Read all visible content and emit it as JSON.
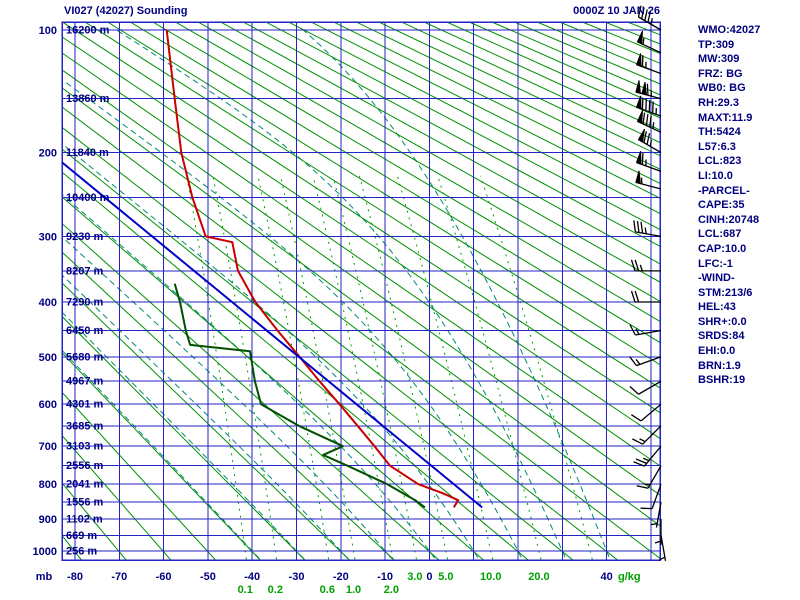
{
  "header": {
    "title": "VI027 (42027) Sounding",
    "datetime": "0000Z 10 JAN 26"
  },
  "colors": {
    "text_navy": "#000080",
    "grid_blue": "#2323c8",
    "dry_adiabat_green": "#009000",
    "moist_adiabat_teal": "#008878",
    "mixing_green": "#00a000",
    "temperature_red": "#c80000",
    "dewpoint_green": "#005000",
    "parcel_blue": "#0000c8",
    "barb_black": "#000000"
  },
  "stats_panel": {
    "lines": [
      "WMO:42027",
      "TP:309",
      "MW:309",
      "FRZ: BG",
      "WB0: BG",
      "RH:29.3",
      "MAXT:11.9",
      "TH:5424",
      "L57:6.3",
      "LCL:823",
      "LI:10.0",
      "-PARCEL-",
      "CAPE:35",
      "CINH:20748",
      "LCL:687",
      "CAP:10.0",
      "LFC:-1",
      "-WIND-",
      "STM:213/6",
      "HEL:43",
      "SHR+:0.0",
      "SRDS:84",
      "EHI:0.0",
      "BRN:1.9",
      "BSHR:19"
    ]
  },
  "chart_data": {
    "type": "line",
    "diagram": "stuve-sounding",
    "title": "VI027 (42027) Sounding",
    "pressure_axis": {
      "unit": "mb",
      "major_labels": [
        100,
        200,
        300,
        400,
        500,
        600,
        700,
        800,
        900,
        1000
      ],
      "grid_min": 100,
      "grid_max": 1000,
      "grid_step": 50
    },
    "temp_axis": {
      "unit": "C",
      "grid_min": -80,
      "grid_max": 50,
      "grid_step": 10,
      "tick_labels": [
        {
          "t": -80,
          "label": "-80"
        },
        {
          "t": -70,
          "label": "-70"
        },
        {
          "t": -60,
          "label": "-60"
        },
        {
          "t": -50,
          "label": "-50"
        },
        {
          "t": -40,
          "label": "-40"
        },
        {
          "t": -30,
          "label": "-30"
        },
        {
          "t": -20,
          "label": "-20"
        },
        {
          "t": -10,
          "label": "-10"
        },
        {
          "t": 0,
          "label": "0"
        },
        {
          "t": 40,
          "label": "40"
        }
      ]
    },
    "height_labels": [
      {
        "p": 100,
        "label": "16200 m"
      },
      {
        "p": 150,
        "label": "13860 m"
      },
      {
        "p": 200,
        "label": "11840 m"
      },
      {
        "p": 250,
        "label": "10400 m"
      },
      {
        "p": 300,
        "label": "9230 m"
      },
      {
        "p": 350,
        "label": "8207 m"
      },
      {
        "p": 400,
        "label": "7290 m"
      },
      {
        "p": 450,
        "label": "6450 m"
      },
      {
        "p": 500,
        "label": "5680 m"
      },
      {
        "p": 550,
        "label": "4967 m"
      },
      {
        "p": 600,
        "label": "4301 m"
      },
      {
        "p": 650,
        "label": "3685 m"
      },
      {
        "p": 700,
        "label": "3103 m"
      },
      {
        "p": 750,
        "label": "2556 m"
      },
      {
        "p": 800,
        "label": "2041 m"
      },
      {
        "p": 850,
        "label": "1556 m"
      },
      {
        "p": 900,
        "label": "1102 m"
      },
      {
        "p": 950,
        "label": "669 m"
      },
      {
        "p": 1000,
        "label": "256 m"
      }
    ],
    "mixing_ratio": {
      "unit": "g/kg",
      "lines_g_kg": [
        0.1,
        0.2,
        0.6,
        1.0,
        2.0,
        3.0,
        5.0,
        10.0,
        20.0,
        40.0
      ],
      "row1_values": [
        3.0,
        5.0,
        10.0,
        20.0
      ],
      "row1_labels": [
        "3.0",
        "5.0",
        "10.0",
        "20.0"
      ],
      "row2_values": [
        0.1,
        0.2,
        0.6,
        1.0,
        2.0
      ],
      "row2_labels": [
        "0.1",
        "0.2",
        "0.6",
        "1.0",
        "2.0"
      ]
    },
    "dry_adiabats": {
      "theta_k_min": 193,
      "theta_k_max": 623,
      "step_k": 10
    },
    "moist_adiabats": {
      "t1000_c": [
        -40,
        -30,
        -20,
        -10,
        0,
        10,
        20,
        30,
        40
      ]
    },
    "series": [
      {
        "name": "temperature",
        "color": "#c80000",
        "points": [
          [
            100,
            -59.3
          ],
          [
            150,
            -57.5
          ],
          [
            200,
            -56.0
          ],
          [
            250,
            -53.5
          ],
          [
            300,
            -50.5
          ],
          [
            308,
            -44.5
          ],
          [
            350,
            -43.2
          ],
          [
            400,
            -39.3
          ],
          [
            450,
            -34.3
          ],
          [
            500,
            -29.3
          ],
          [
            550,
            -24.8
          ],
          [
            600,
            -20.3
          ],
          [
            650,
            -16.2
          ],
          [
            700,
            -12.4
          ],
          [
            750,
            -8.9
          ],
          [
            800,
            -2.5
          ],
          [
            825,
            3.0
          ],
          [
            845,
            6.5
          ],
          [
            866,
            5.5
          ]
        ]
      },
      {
        "name": "dewpoint",
        "color": "#005000",
        "points": [
          [
            370,
            -57.5
          ],
          [
            400,
            -56.3
          ],
          [
            450,
            -55.0
          ],
          [
            477,
            -54.0
          ],
          [
            489,
            -40.5
          ],
          [
            550,
            -39.4
          ],
          [
            600,
            -38.0
          ],
          [
            650,
            -29.5
          ],
          [
            700,
            -19.5
          ],
          [
            722,
            -24.0
          ],
          [
            750,
            -18.5
          ],
          [
            800,
            -9.5
          ],
          [
            845,
            -3.2
          ],
          [
            866,
            -1.0
          ]
        ]
      },
      {
        "name": "parcel",
        "color": "#0000c8",
        "points": [
          [
            866,
            11.9
          ],
          [
            210,
            -83.0
          ]
        ]
      }
    ],
    "wind_barbs": [
      {
        "p": 100,
        "dir": 300,
        "spd": 45
      },
      {
        "p": 115,
        "dir": 295,
        "spd": 55
      },
      {
        "p": 130,
        "dir": 290,
        "spd": 65
      },
      {
        "p": 150,
        "dir": 285,
        "spd": 115
      },
      {
        "p": 165,
        "dir": 290,
        "spd": 95
      },
      {
        "p": 180,
        "dir": 295,
        "spd": 85
      },
      {
        "p": 200,
        "dir": 300,
        "spd": 75
      },
      {
        "p": 220,
        "dir": 290,
        "spd": 65
      },
      {
        "p": 240,
        "dir": 285,
        "spd": 55
      },
      {
        "p": 300,
        "dir": 280,
        "spd": 35
      },
      {
        "p": 350,
        "dir": 270,
        "spd": 25
      },
      {
        "p": 400,
        "dir": 270,
        "spd": 20
      },
      {
        "p": 450,
        "dir": 260,
        "spd": 15
      },
      {
        "p": 500,
        "dir": 250,
        "spd": 15
      },
      {
        "p": 550,
        "dir": 240,
        "spd": 10
      },
      {
        "p": 600,
        "dir": 230,
        "spd": 10
      },
      {
        "p": 650,
        "dir": 225,
        "spd": 15
      },
      {
        "p": 700,
        "dir": 220,
        "spd": 25
      },
      {
        "p": 750,
        "dir": 210,
        "spd": 15
      },
      {
        "p": 800,
        "dir": 200,
        "spd": 10
      },
      {
        "p": 850,
        "dir": 190,
        "spd": 5
      },
      {
        "p": 900,
        "dir": 180,
        "spd": 5
      },
      {
        "p": 950,
        "dir": 170,
        "spd": 5
      }
    ],
    "axis_corner_labels": {
      "pressure_unit": "mb",
      "temp_40_label": "40",
      "mixing_unit": "g/kg"
    }
  }
}
